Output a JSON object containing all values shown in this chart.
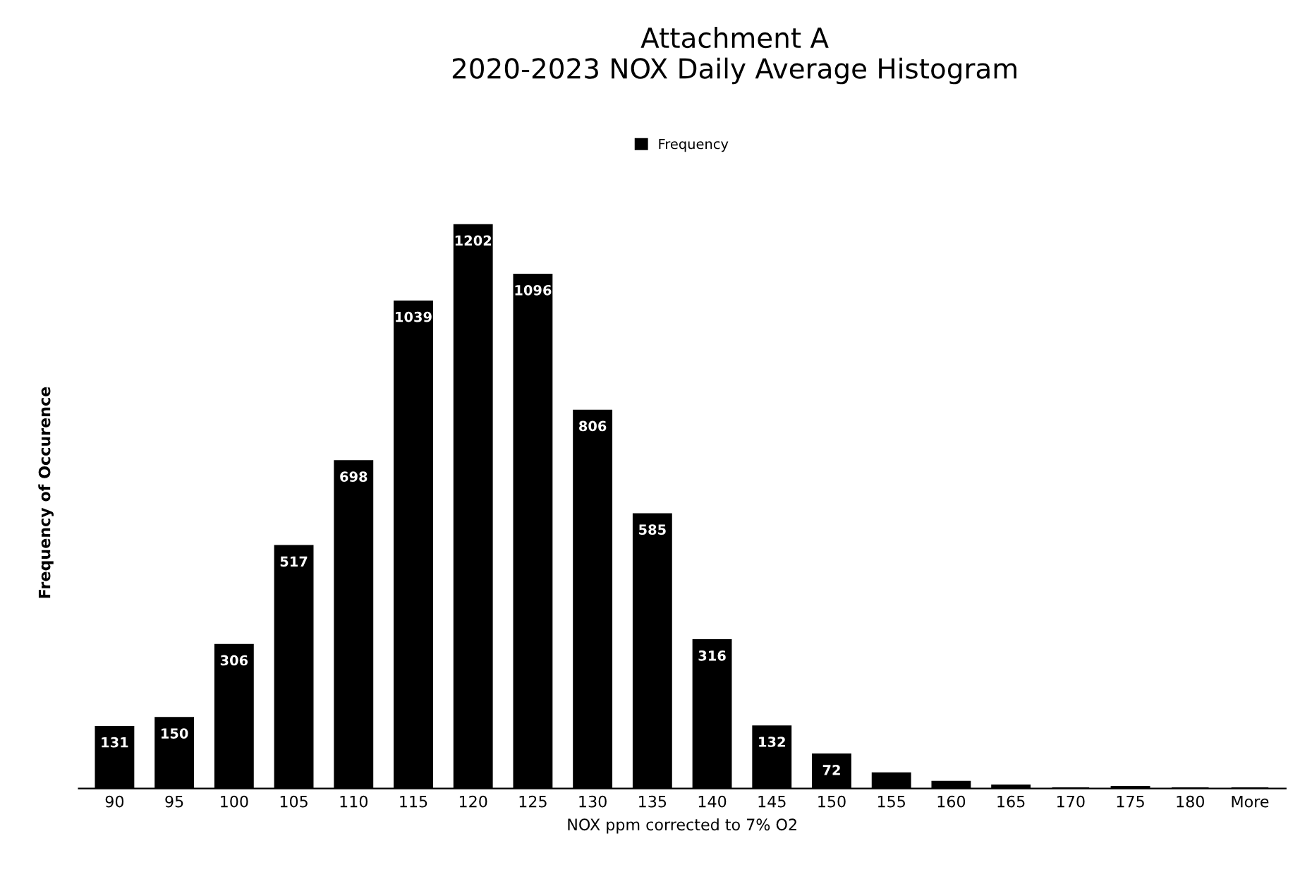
{
  "chart_data": {
    "type": "bar",
    "title": "Attachment A\n2020-2023 NOX Daily Average Histogram",
    "xlabel": "NOX ppm corrected to 7% O2",
    "ylabel": "Frequency of Occurence",
    "categories": [
      "90",
      "95",
      "100",
      "105",
      "110",
      "115",
      "120",
      "125",
      "130",
      "135",
      "140",
      "145",
      "150",
      "155",
      "160",
      "165",
      "170",
      "175",
      "180",
      "More"
    ],
    "series": [
      {
        "name": "Frequency",
        "color": "#000000",
        "values": [
          131,
          150,
          306,
          517,
          698,
          1039,
          1202,
          1096,
          806,
          585,
          316,
          132,
          72,
          32,
          14,
          6,
          0,
          3,
          0,
          0
        ],
        "value_labels": [
          "131",
          "150",
          "306",
          "517",
          "698",
          "1039",
          "1202",
          "1096",
          "806",
          "585",
          "316",
          "132",
          "72",
          null,
          null,
          null,
          null,
          null,
          null,
          null
        ]
      }
    ],
    "legend": "top",
    "grid": false
  }
}
